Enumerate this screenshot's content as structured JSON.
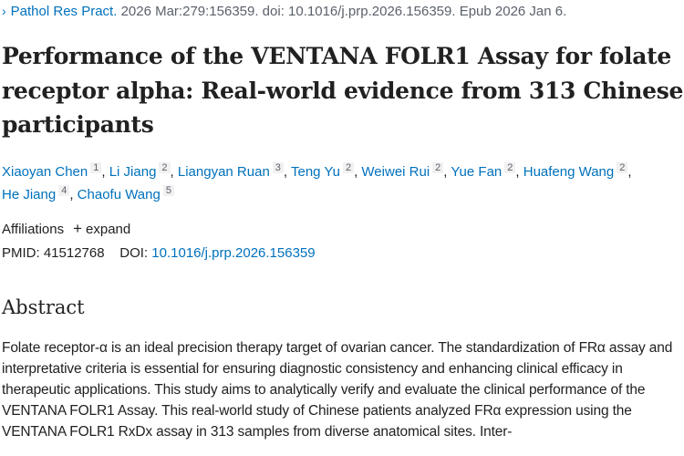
{
  "citation": {
    "journal": "Pathol Res Pract.",
    "details": "2026 Mar:279:156359. doi: 10.1016/j.prp.2026.156359. Epub 2026 Jan 6."
  },
  "title": "Performance of the VENTANA FOLR1 Assay for folate receptor alpha: Real-world evidence from 313 Chinese participants",
  "authors": [
    {
      "name": "Xiaoyan Chen",
      "aff": "1"
    },
    {
      "name": "Li Jiang",
      "aff": "2"
    },
    {
      "name": "Liangyan Ruan",
      "aff": "3"
    },
    {
      "name": "Teng Yu",
      "aff": "2"
    },
    {
      "name": "Weiwei Rui",
      "aff": "2"
    },
    {
      "name": "Yue Fan",
      "aff": "2"
    },
    {
      "name": "Huafeng Wang",
      "aff": "2"
    },
    {
      "name": "He Jiang",
      "aff": "4"
    },
    {
      "name": "Chaofu Wang",
      "aff": "5"
    }
  ],
  "affiliations": {
    "label": "Affiliations",
    "toggle": "expand"
  },
  "ids": {
    "pmid_label": "PMID:",
    "pmid": "41512768",
    "doi_label": "DOI:",
    "doi": "10.1016/j.prp.2026.156359"
  },
  "abstract": {
    "heading": "Abstract",
    "text": "Folate receptor-α is an ideal precision therapy target of ovarian cancer. The standardization of FRα assay and interpretative criteria is essential for ensuring diagnostic consistency and enhancing clinical efficacy in therapeutic applications. This study aims to analytically verify and evaluate the clinical performance of the VENTANA FOLR1 Assay. This real-world study of Chinese patients analyzed FRα expression using the VENTANA FOLR1 RxDx assay in 313 samples from diverse anatomical sites. Inter-"
  }
}
